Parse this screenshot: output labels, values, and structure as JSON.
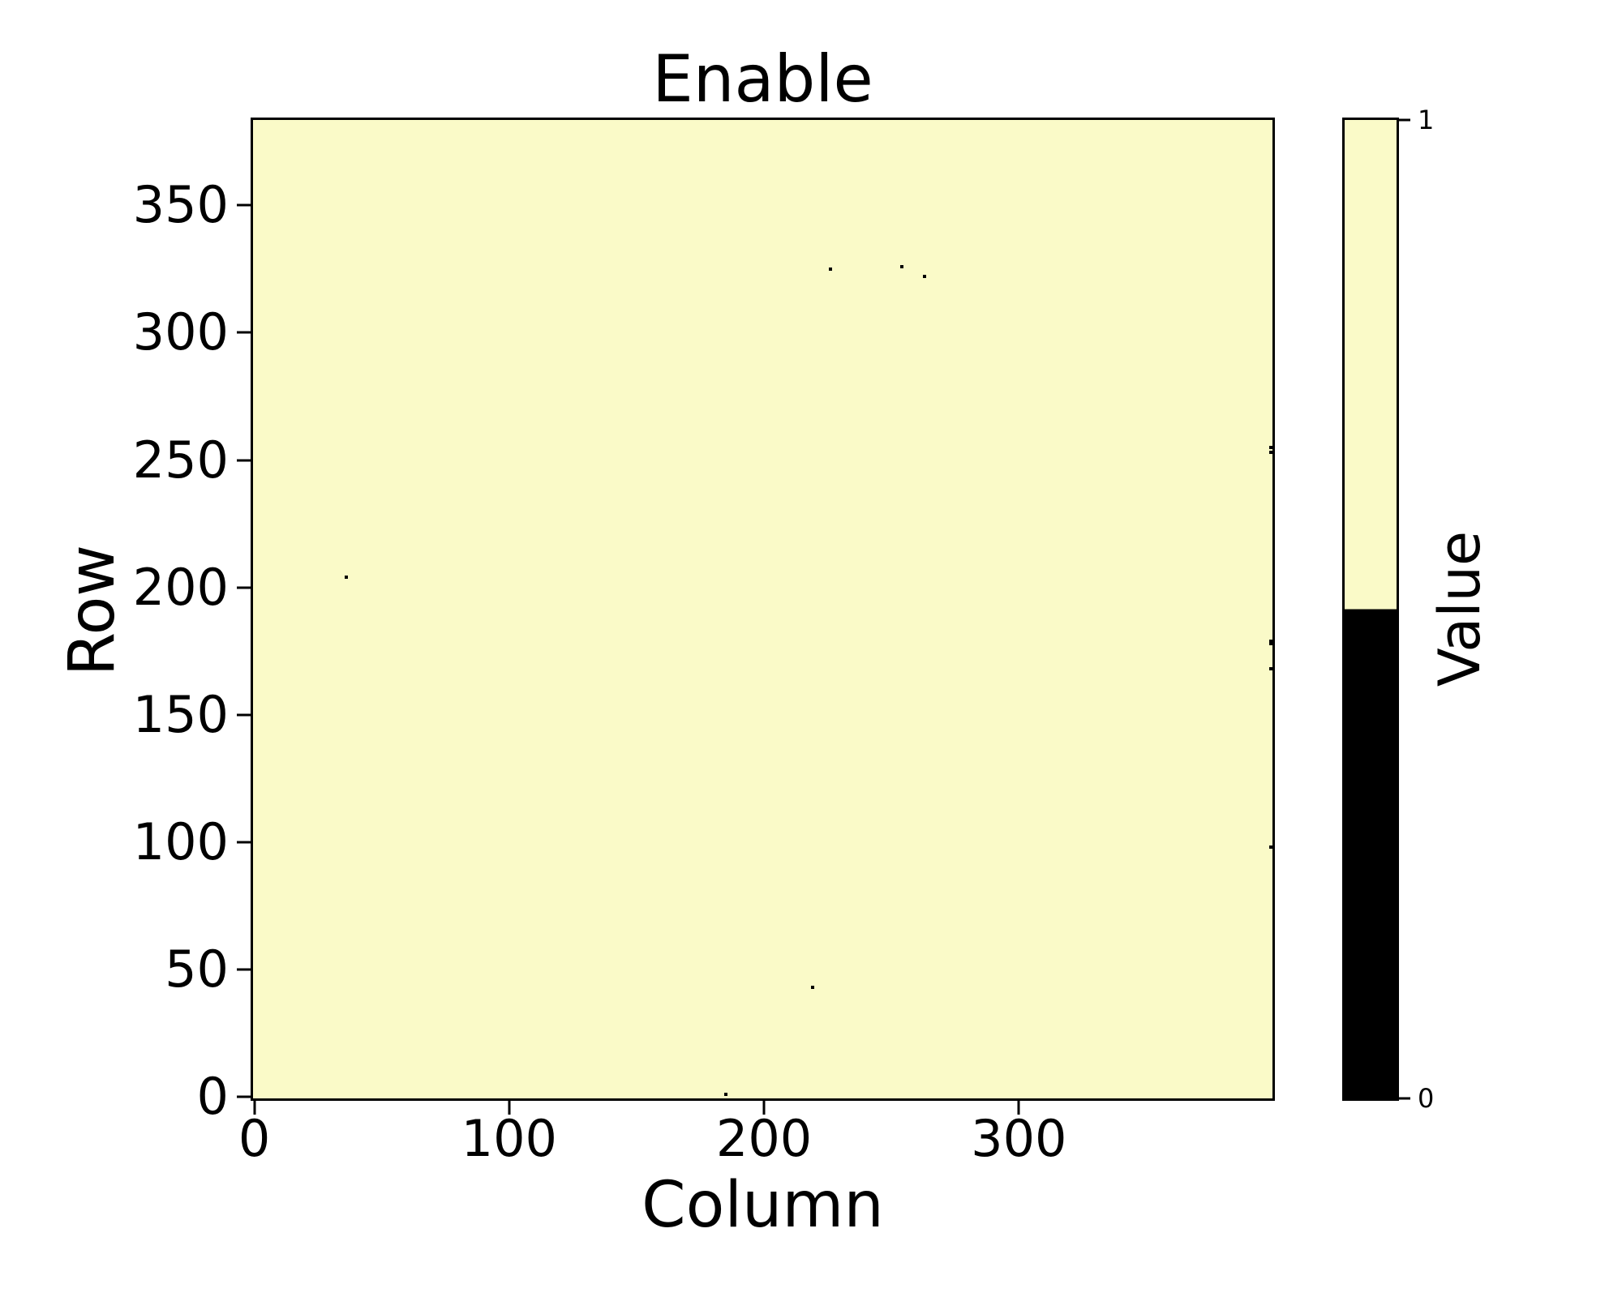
{
  "chart_data": {
    "type": "heatmap",
    "title": "Enable",
    "xlabel": "Column",
    "ylabel": "Row",
    "n_cols": 400,
    "n_rows": 384,
    "x_ticks": [
      0,
      100,
      200,
      300
    ],
    "y_ticks": [
      0,
      50,
      100,
      150,
      200,
      250,
      300,
      350
    ],
    "xlim": [
      0,
      400
    ],
    "ylim": [
      0,
      384
    ],
    "grid": false,
    "default_value": 1,
    "zero_cells": [
      [
        36,
        204
      ],
      [
        185,
        1
      ],
      [
        219,
        43
      ],
      [
        226,
        325
      ],
      [
        254,
        326
      ],
      [
        263,
        322
      ],
      [
        399,
        98
      ],
      [
        399,
        168
      ],
      [
        399,
        178
      ],
      [
        399,
        179
      ],
      [
        399,
        253
      ],
      [
        399,
        255
      ]
    ],
    "colormap": {
      "0": "#000000",
      "1": "#fafac8"
    },
    "colorbar": {
      "label": "Value",
      "tick_top": "1",
      "tick_bottom": "0",
      "position": "right"
    }
  }
}
